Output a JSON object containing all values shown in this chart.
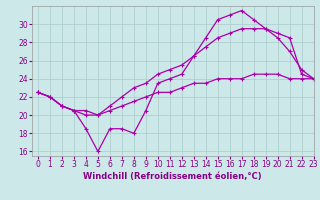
{
  "title": "",
  "xlabel": "Windchill (Refroidissement éolien,°C)",
  "bg_color": "#cce8e8",
  "grid_color": "#aacccc",
  "line_color": "#aa00aa",
  "xlim": [
    -0.5,
    23
  ],
  "ylim": [
    15.5,
    32.0
  ],
  "xticks": [
    0,
    1,
    2,
    3,
    4,
    5,
    6,
    7,
    8,
    9,
    10,
    11,
    12,
    13,
    14,
    15,
    16,
    17,
    18,
    19,
    20,
    21,
    22,
    23
  ],
  "yticks": [
    16,
    18,
    20,
    22,
    24,
    26,
    28,
    30
  ],
  "hours": [
    0,
    1,
    2,
    3,
    4,
    5,
    6,
    7,
    8,
    9,
    10,
    11,
    12,
    13,
    14,
    15,
    16,
    17,
    18,
    19,
    20,
    21,
    22,
    23
  ],
  "line1": [
    22.5,
    22.0,
    21.0,
    20.5,
    18.5,
    16.0,
    18.5,
    18.5,
    18.0,
    20.5,
    23.5,
    24.0,
    24.5,
    26.5,
    28.5,
    30.5,
    31.0,
    31.5,
    30.5,
    29.5,
    28.5,
    27.0,
    25.0,
    24.0
  ],
  "line2": [
    22.5,
    22.0,
    21.0,
    20.5,
    20.5,
    20.0,
    21.0,
    22.0,
    23.0,
    23.5,
    24.5,
    25.0,
    25.5,
    26.5,
    27.5,
    28.5,
    29.0,
    29.5,
    29.5,
    29.5,
    29.0,
    28.5,
    24.5,
    24.0
  ],
  "line3": [
    22.5,
    22.0,
    21.0,
    20.5,
    20.0,
    20.0,
    20.5,
    21.0,
    21.5,
    22.0,
    22.5,
    22.5,
    23.0,
    23.5,
    23.5,
    24.0,
    24.0,
    24.0,
    24.5,
    24.5,
    24.5,
    24.0,
    24.0,
    24.0
  ],
  "tick_fontsize": 5.5,
  "xlabel_fontsize": 6.0,
  "lw": 0.9,
  "ms": 3.5
}
